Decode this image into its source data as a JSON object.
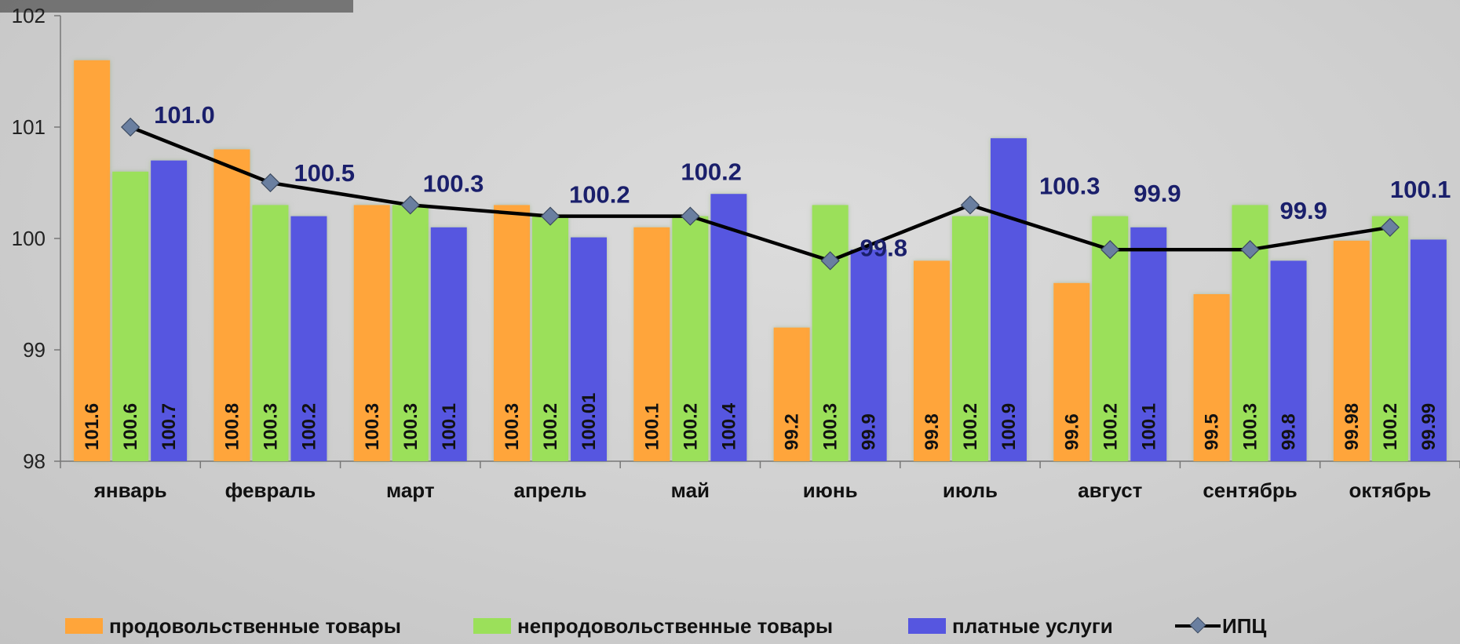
{
  "chart_data": {
    "type": "bar",
    "categories": [
      "январь",
      "февраль",
      "март",
      "апрель",
      "май",
      "июнь",
      "июль",
      "август",
      "сентябрь",
      "октябрь"
    ],
    "series": [
      {
        "name": "продовольственные товары",
        "kind": "bar",
        "color": "#FFA53A",
        "values": [
          101.6,
          100.8,
          100.3,
          100.3,
          100.1,
          99.2,
          99.8,
          99.6,
          99.5,
          99.98
        ],
        "labels": [
          "101.6",
          "100.8",
          "100.3",
          "100.3",
          "100.1",
          "99.2",
          "99.8",
          "99.6",
          "99.5",
          "99.98"
        ]
      },
      {
        "name": "непродовольственные товары",
        "kind": "bar",
        "color": "#9BE05A",
        "values": [
          100.6,
          100.3,
          100.3,
          100.2,
          100.2,
          100.3,
          100.2,
          100.2,
          100.3,
          100.2
        ],
        "labels": [
          "100.6",
          "100.3",
          "100.3",
          "100.2",
          "100.2",
          "100.3",
          "100.2",
          "100.2",
          "100.3",
          "100.2"
        ]
      },
      {
        "name": "платные услуги",
        "kind": "bar",
        "color": "#5656E0",
        "values": [
          100.7,
          100.2,
          100.1,
          100.01,
          100.4,
          99.9,
          100.9,
          100.1,
          99.8,
          99.99
        ],
        "labels": [
          "100.7",
          "100.2",
          "100.1",
          "100.01",
          "100.4",
          "99.9",
          "100.9",
          "100.1",
          "99.8",
          "99.99"
        ]
      },
      {
        "name": "ИПЦ",
        "kind": "line",
        "color": "#000000",
        "marker_color": "#6A7FA0",
        "values": [
          101.0,
          100.5,
          100.3,
          100.2,
          100.2,
          99.8,
          100.3,
          99.9,
          99.9,
          100.1
        ],
        "labels": [
          "101.0",
          "100.5",
          "100.3",
          "100.2",
          "100.2",
          "99.8",
          "100.3",
          "99.9",
          "99.9",
          "100.1"
        ]
      }
    ],
    "y_ticks": [
      "98",
      "99",
      "100",
      "101",
      "102"
    ],
    "ylim": [
      98,
      102
    ],
    "grid": false,
    "legend_position": "bottom",
    "title": "",
    "xlabel": "",
    "ylabel": ""
  }
}
